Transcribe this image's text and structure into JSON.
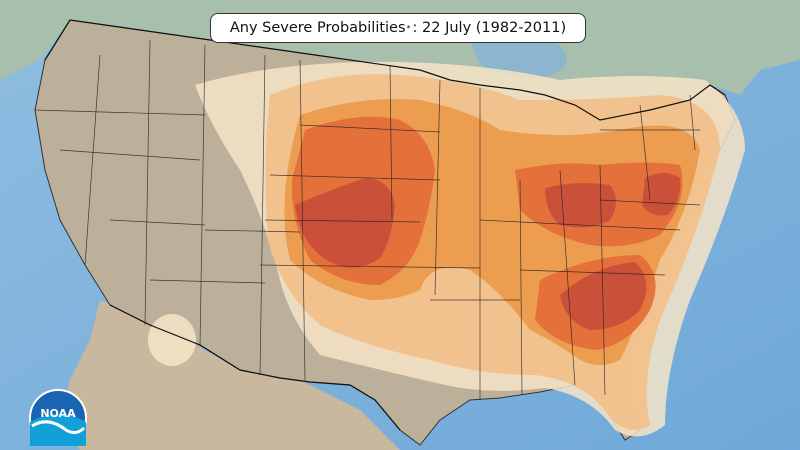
{
  "title": {
    "main": "Any Severe Probabilities",
    "marker": "*",
    "date": ": 22 July (1982-2011)"
  },
  "logo": {
    "text": "NOAA"
  },
  "colors": {
    "ocean": "#7fb2dd",
    "land": "#b8ad9a",
    "canada": "#9fb8a8",
    "mexico": "#c4b49a",
    "band1": "#f5e3c6",
    "band2": "#f2c08a",
    "band3": "#ec9a4c",
    "band4": "#e06c35",
    "band5": "#c74b3a"
  }
}
